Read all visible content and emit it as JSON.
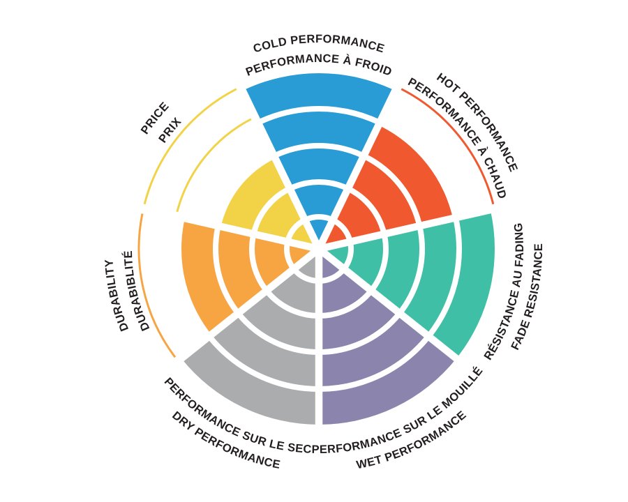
{
  "page": {
    "background": "#FFFFFF"
  },
  "chart_data": {
    "type": "polar-bar",
    "subtype": "segmented-rating-wheel",
    "description": "Seven-sector bilingual rating wheel. Each sector is a pie wedge split into 5 concentric rings; the number of filled rings is the score out of 5. Thin colored outline arcs mark each unfilled ring of a sector.",
    "rings_per_sector": 5,
    "scale_min": 0,
    "scale_max": 5,
    "direction": "clockwise",
    "first_sector_bisector_deg": 90,
    "grid": "white ring dividers and white radial spokes",
    "legend_position": "none",
    "text_color": "#221E1F",
    "divider_color": "#FFFFFF",
    "sectors": [
      {
        "id": "cold",
        "label_en": "COLD PERFORMANCE",
        "label_fr": "PERFORMANCE À FROID",
        "value": 5,
        "color": "#299CD6"
      },
      {
        "id": "hot",
        "label_en": "HOT PERFORMANCE",
        "label_fr": "PERFORMANCE À CHAUD",
        "value": 4,
        "color": "#F0592F"
      },
      {
        "id": "fade",
        "label_en": "FADE RESISTANCE",
        "label_fr": "RÉSISTANCE AU FADING",
        "value": 5,
        "color": "#3FBFA5"
      },
      {
        "id": "wet",
        "label_en": "WET PERFORMANCE",
        "label_fr": "PERFORMANCE SUR LE MOUILLÉ",
        "value": 5,
        "color": "#8B85AD"
      },
      {
        "id": "dry",
        "label_en": "DRY PERFORMANCE",
        "label_fr": "PERFORMANCE SUR LE SEC",
        "value": 5,
        "color": "#ABACAE"
      },
      {
        "id": "durability",
        "label_en": "DURABILITY",
        "label_fr": "DURABIBLITÉ",
        "value": 4,
        "color": "#F7A543"
      },
      {
        "id": "price",
        "label_en": "PRICE",
        "label_fr": "PRIX",
        "value": 3,
        "color": "#F2D348"
      }
    ]
  }
}
